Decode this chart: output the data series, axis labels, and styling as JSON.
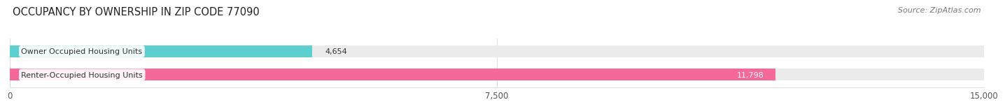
{
  "title": "OCCUPANCY BY OWNERSHIP IN ZIP CODE 77090",
  "source": "Source: ZipAtlas.com",
  "categories": [
    "Owner Occupied Housing Units",
    "Renter-Occupied Housing Units"
  ],
  "values": [
    4654,
    11798
  ],
  "bar_colors": [
    "#5ecfcf",
    "#f4689a"
  ],
  "bar_bg_color": "#ebebeb",
  "value_labels": [
    "4,654",
    "11,798"
  ],
  "value_inside": [
    false,
    true
  ],
  "xlim": [
    0,
    15000
  ],
  "xticks": [
    0,
    7500,
    15000
  ],
  "xtick_labels": [
    "0",
    "7,500",
    "15,000"
  ],
  "title_fontsize": 10.5,
  "source_fontsize": 8,
  "label_fontsize": 8,
  "value_fontsize": 8,
  "bar_height": 0.52,
  "bg_color": "#ffffff",
  "text_color": "#555555",
  "label_box_color": "#ffffff"
}
